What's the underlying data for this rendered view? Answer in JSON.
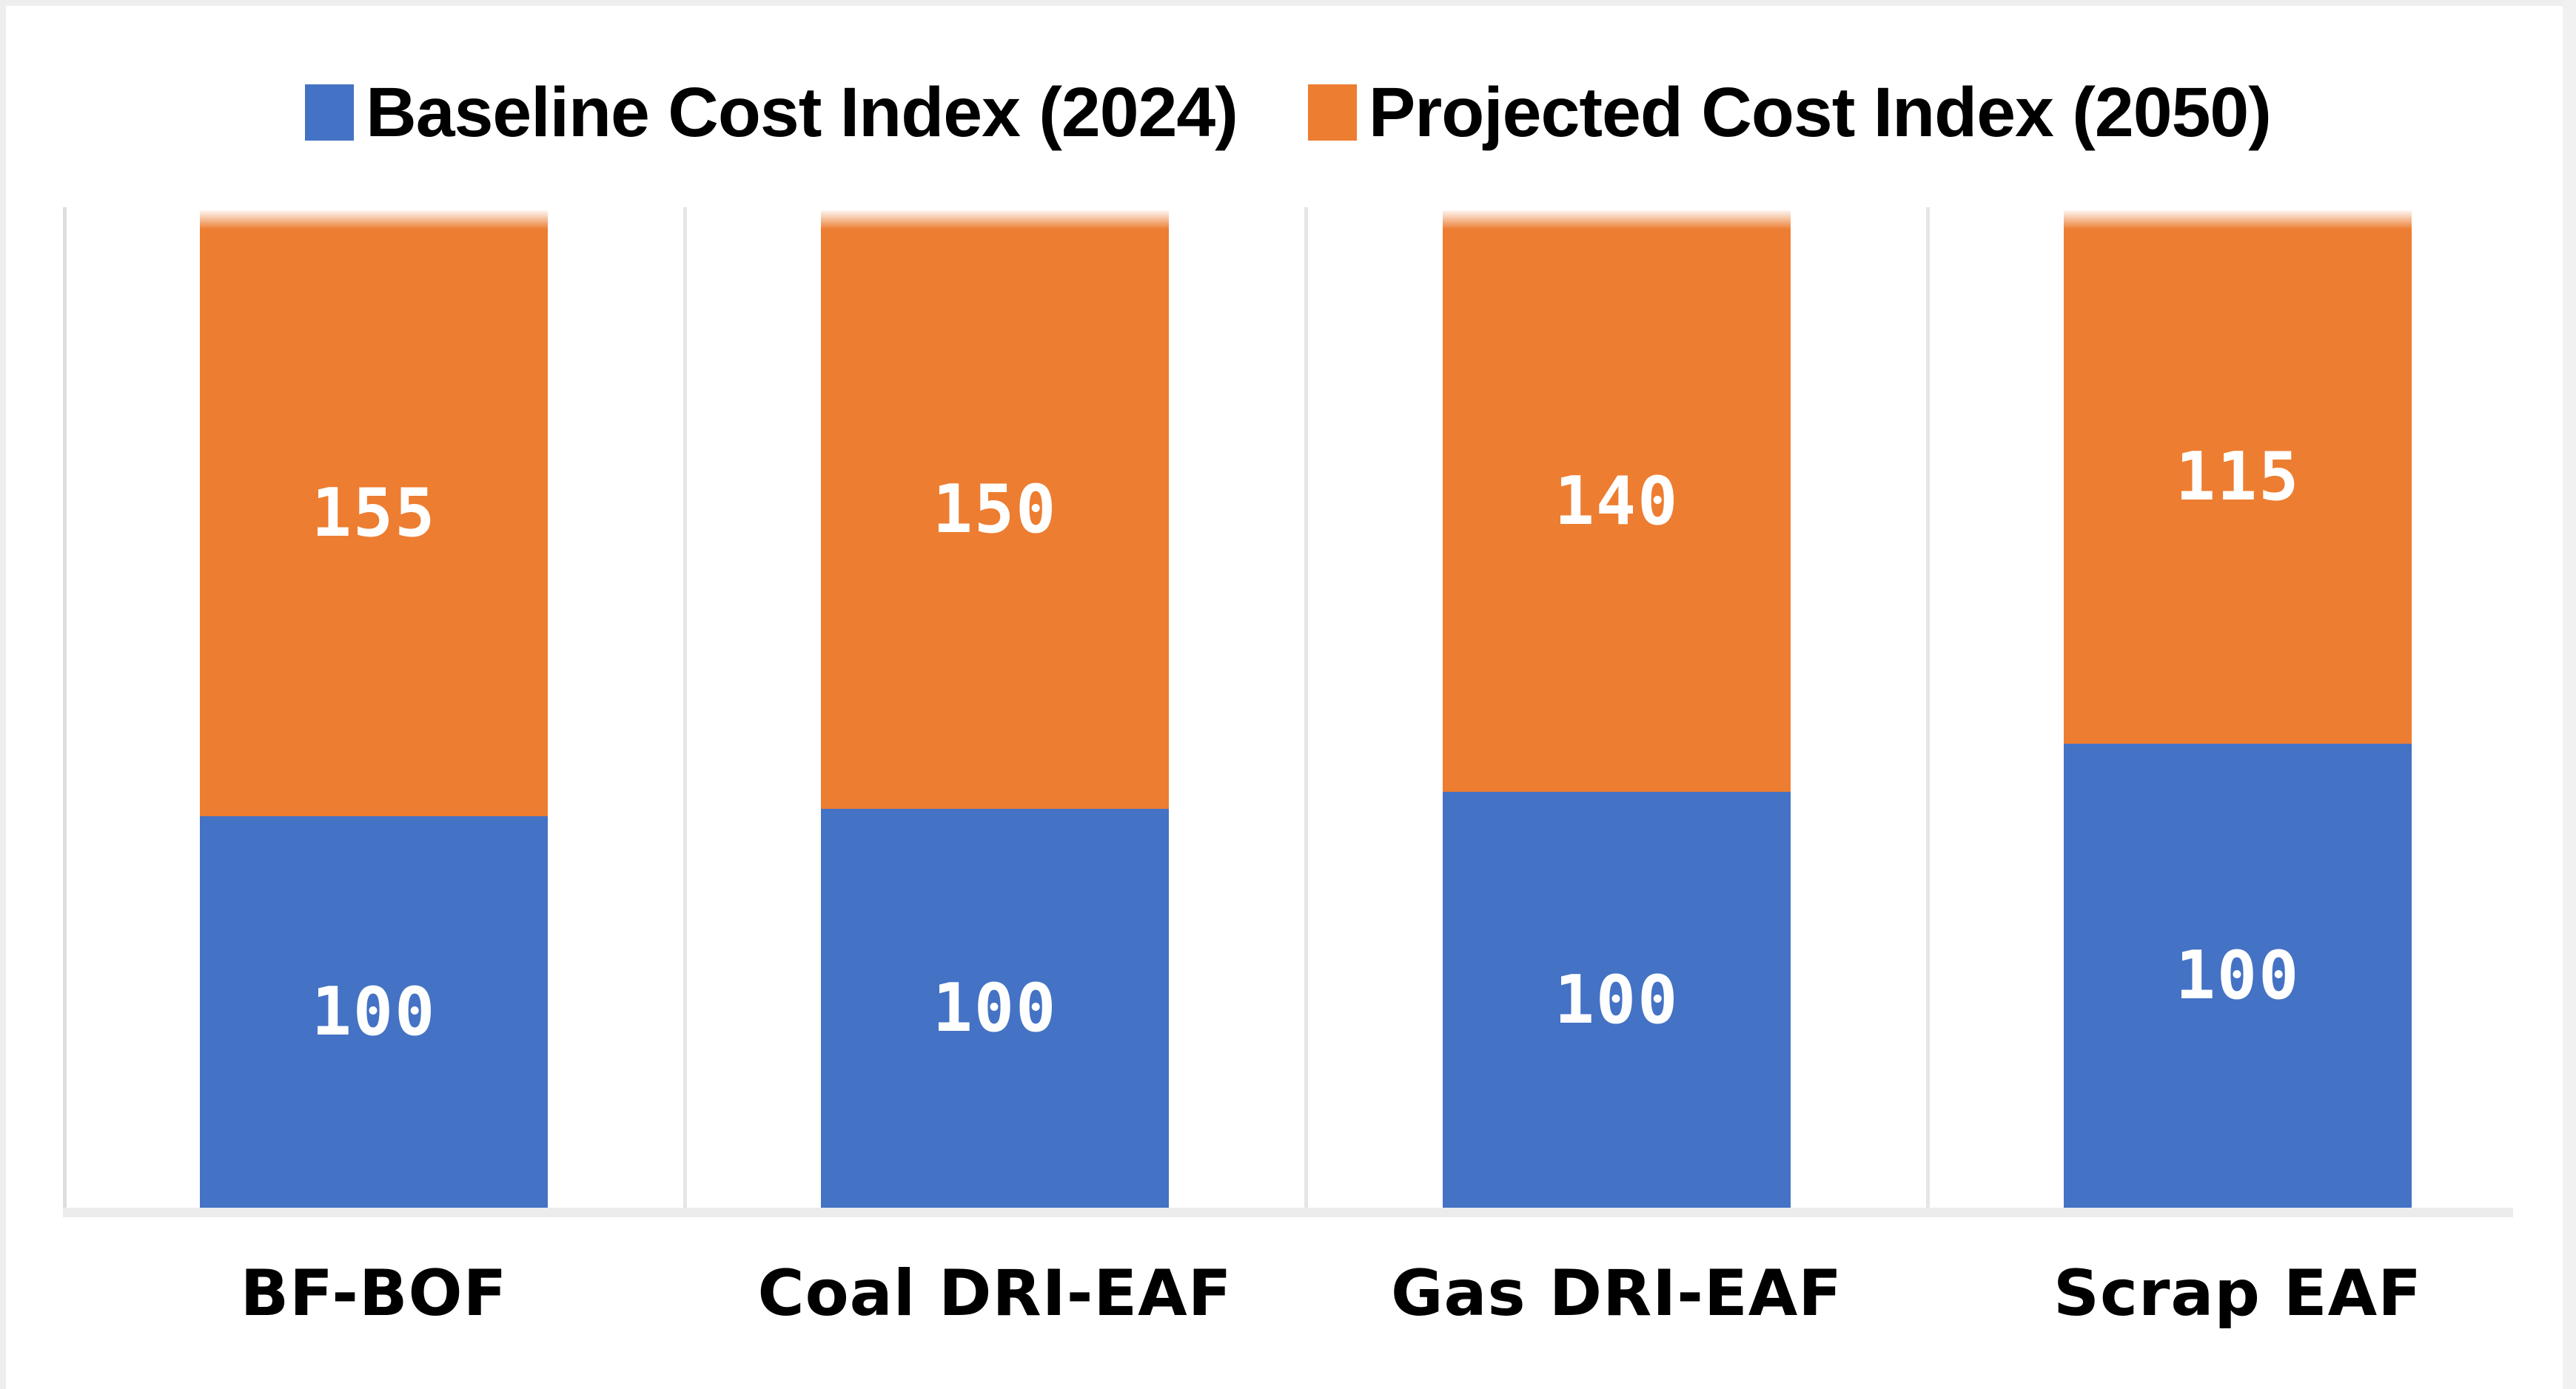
{
  "chart_data": {
    "type": "bar",
    "subtype": "stacked-column",
    "bars_normalized_to_equal_height": true,
    "value_labels_shown": true,
    "legend_position": "top",
    "grid": "vertical-category-separators",
    "title": "",
    "xlabel": "",
    "ylabel": "",
    "categories": [
      "BF-BOF",
      "Coal DRI-EAF",
      "Gas DRI-EAF",
      "Scrap EAF"
    ],
    "series": [
      {
        "name": "Baseline Cost Index (2024)",
        "color": "#4472C4",
        "values": [
          100,
          100,
          100,
          100
        ]
      },
      {
        "name": "Projected Cost Index (2050)",
        "color": "#ED7D31",
        "values": [
          155,
          150,
          140,
          115
        ]
      }
    ]
  }
}
